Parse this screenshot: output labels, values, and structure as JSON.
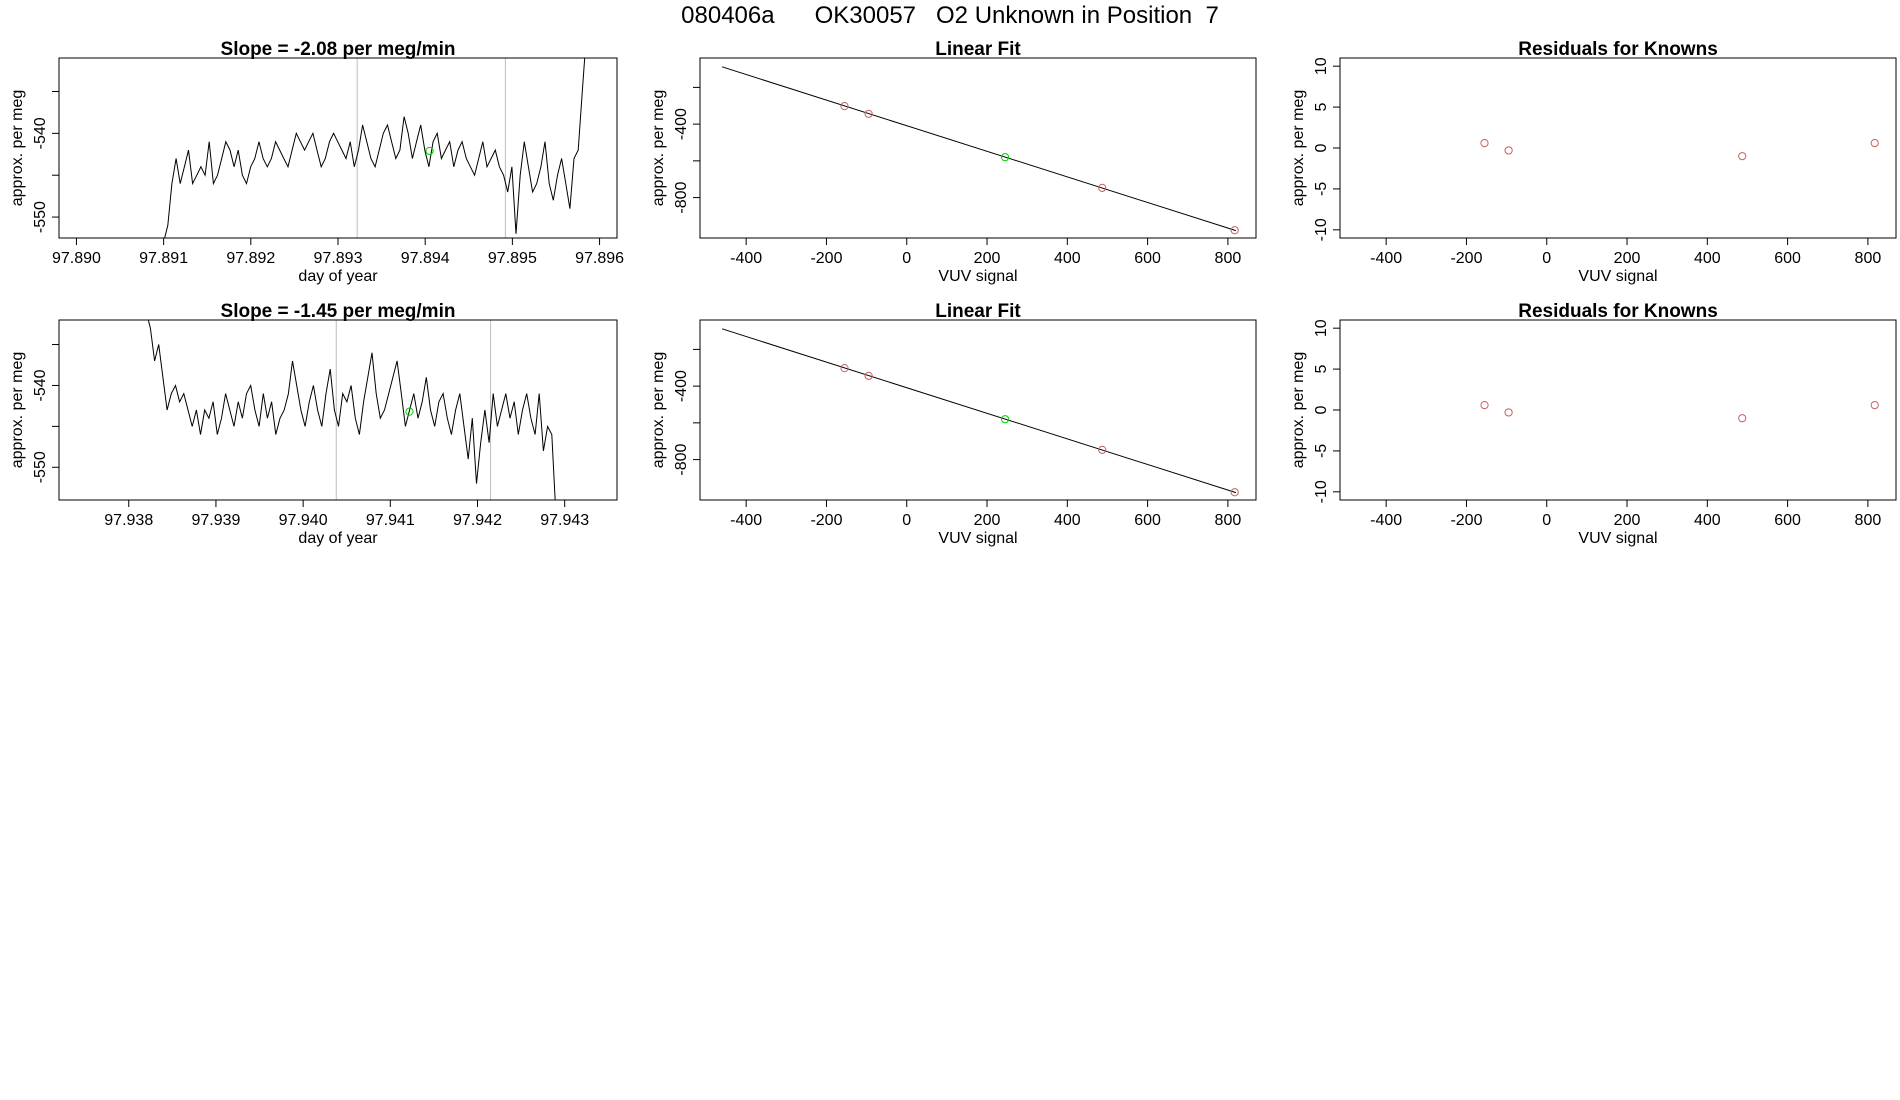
{
  "figure": {
    "title": "080406a      OK30057   O2 Unknown in Position  7",
    "colors": {
      "trace": "#000000",
      "known": "#cd5c5c",
      "unknown": "#00cd00",
      "vline": "#bebebe",
      "axis": "#000000"
    }
  },
  "chart_data": [
    {
      "id": "drift-1",
      "type": "line",
      "title": "Slope =  -2.08  per meg/min",
      "xlabel": "day of year",
      "ylabel": "approx. per meg",
      "xlim": [
        97.8898,
        97.8962
      ],
      "ylim": [
        -552.5,
        -531
      ],
      "xticks": [
        "97.890",
        "97.891",
        "97.892",
        "97.893",
        "97.894",
        "97.895",
        "97.896"
      ],
      "xtick_values": [
        97.89,
        97.891,
        97.892,
        97.893,
        97.894,
        97.895,
        97.896
      ],
      "yticks": [
        "-550",
        "",
        "-540",
        ""
      ],
      "ytick_values": [
        -550,
        -545,
        -540,
        -535
      ],
      "vlines": [
        97.89322,
        97.89492
      ],
      "trace": {
        "x_start": 97.891,
        "x_end": 97.89585,
        "y": [
          -553,
          -551,
          -546,
          -543,
          -546,
          -544,
          -542,
          -546,
          -545,
          -544,
          -545,
          -541,
          -546,
          -545,
          -543,
          -541,
          -542,
          -544,
          -542,
          -545,
          -546,
          -544,
          -543,
          -541,
          -543,
          -544,
          -543,
          -541,
          -542,
          -543,
          -544,
          -542,
          -540,
          -541,
          -542,
          -541,
          -540,
          -542,
          -544,
          -543,
          -541,
          -540,
          -541,
          -542,
          -543,
          -541,
          -544,
          -542,
          -539,
          -541,
          -543,
          -544,
          -542,
          -540,
          -539,
          -541,
          -543,
          -542,
          -538,
          -540,
          -543,
          -541,
          -539,
          -542,
          -544,
          -541,
          -540,
          -543,
          -542,
          -541,
          -544,
          -542,
          -541,
          -543,
          -544,
          -545,
          -543,
          -541,
          -544,
          -543,
          -542,
          -544,
          -545,
          -547,
          -544,
          -552,
          -545,
          -541,
          -544,
          -547,
          -546,
          -544,
          -541,
          -546,
          -548,
          -545,
          -543,
          -546,
          -549,
          -543,
          -542,
          -535,
          -528
        ]
      },
      "unknown_point": {
        "x": 97.89405,
        "y": -542.1
      }
    },
    {
      "id": "fit-1",
      "type": "scatter",
      "title": "Linear Fit",
      "xlabel": "VUV signal",
      "ylabel": "approx. per meg",
      "xlim": [
        -515,
        870
      ],
      "ylim": [
        -1020,
        -40
      ],
      "xticks": [
        "-400",
        "-200",
        "0",
        "200",
        "400",
        "600",
        "800"
      ],
      "xtick_values": [
        -400,
        -200,
        0,
        200,
        400,
        600,
        800
      ],
      "yticks": [
        "",
        "-400",
        "",
        "-800"
      ],
      "ytick_values": [
        -200,
        -400,
        -600,
        -800
      ],
      "fit_line": {
        "x": [
          -460,
          820
        ],
        "y": [
          -88,
          -980
        ]
      },
      "known_points": [
        {
          "x": -155,
          "y": -302
        },
        {
          "x": -95,
          "y": -344
        },
        {
          "x": 487,
          "y": -747
        },
        {
          "x": 817,
          "y": -978
        }
      ],
      "unknown_point": {
        "x": 245,
        "y": -580
      }
    },
    {
      "id": "resid-1",
      "type": "scatter",
      "title": "Residuals for Knowns",
      "xlabel": "VUV signal",
      "ylabel": "approx. per meg",
      "xlim": [
        -515,
        870
      ],
      "ylim": [
        -11,
        11
      ],
      "xticks": [
        "-400",
        "-200",
        "0",
        "200",
        "400",
        "600",
        "800"
      ],
      "xtick_values": [
        -400,
        -200,
        0,
        200,
        400,
        600,
        800
      ],
      "yticks": [
        "-10",
        "-5",
        "0",
        "5",
        "10"
      ],
      "ytick_values": [
        -10,
        -5,
        0,
        5,
        10
      ],
      "known_points": [
        {
          "x": -155,
          "y": 0.6
        },
        {
          "x": -95,
          "y": -0.3
        },
        {
          "x": 487,
          "y": -1.0
        },
        {
          "x": 817,
          "y": 0.6
        }
      ]
    },
    {
      "id": "drift-2",
      "type": "line",
      "title": "Slope =  -1.45  per meg/min",
      "xlabel": "day of year",
      "ylabel": "approx. per meg",
      "xlim": [
        97.9372,
        97.9436
      ],
      "ylim": [
        -554,
        -532
      ],
      "xticks": [
        "97.938",
        "97.939",
        "97.940",
        "97.941",
        "97.942",
        "97.943"
      ],
      "xtick_values": [
        97.938,
        97.939,
        97.94,
        97.941,
        97.942,
        97.943
      ],
      "yticks": [
        "-550",
        "",
        "-540",
        ""
      ],
      "ytick_values": [
        -550,
        -545,
        -540,
        -535
      ],
      "vlines": [
        97.94038,
        97.94215
      ],
      "trace": {
        "x_start": 97.9382,
        "x_end": 97.9429,
        "y": [
          -531,
          -533,
          -537,
          -535,
          -539,
          -543,
          -541,
          -540,
          -542,
          -541,
          -543,
          -545,
          -543,
          -546,
          -543,
          -544,
          -542,
          -546,
          -544,
          -541,
          -543,
          -545,
          -542,
          -544,
          -541,
          -540,
          -543,
          -545,
          -541,
          -544,
          -542,
          -546,
          -544,
          -543,
          -541,
          -537,
          -540,
          -543,
          -545,
          -542,
          -540,
          -543,
          -545,
          -541,
          -538,
          -543,
          -545,
          -541,
          -542,
          -540,
          -544,
          -546,
          -542,
          -539,
          -536,
          -541,
          -544,
          -543,
          -541,
          -539,
          -537,
          -541,
          -545,
          -543,
          -541,
          -544,
          -542,
          -539,
          -543,
          -545,
          -542,
          -541,
          -544,
          -546,
          -543,
          -541,
          -545,
          -549,
          -544,
          -552,
          -547,
          -543,
          -547,
          -541,
          -545,
          -543,
          -541,
          -544,
          -542,
          -546,
          -543,
          -541,
          -544,
          -546,
          -541,
          -548,
          -545,
          -546,
          -556
        ]
      },
      "unknown_point": {
        "x": 97.94122,
        "y": -543.2
      }
    },
    {
      "id": "fit-2",
      "type": "scatter",
      "title": "Linear Fit",
      "xlabel": "VUV signal",
      "ylabel": "approx. per meg",
      "xlim": [
        -515,
        870
      ],
      "ylim": [
        -1020,
        -40
      ],
      "xticks": [
        "-400",
        "-200",
        "0",
        "200",
        "400",
        "600",
        "800"
      ],
      "xtick_values": [
        -400,
        -200,
        0,
        200,
        400,
        600,
        800
      ],
      "yticks": [
        "",
        "-400",
        "",
        "-800"
      ],
      "ytick_values": [
        -200,
        -400,
        -600,
        -800
      ],
      "fit_line": {
        "x": [
          -460,
          820
        ],
        "y": [
          -88,
          -980
        ]
      },
      "known_points": [
        {
          "x": -155,
          "y": -302
        },
        {
          "x": -95,
          "y": -344
        },
        {
          "x": 487,
          "y": -747
        },
        {
          "x": 817,
          "y": -978
        }
      ],
      "unknown_point": {
        "x": 245,
        "y": -580
      }
    },
    {
      "id": "resid-2",
      "type": "scatter",
      "title": "Residuals for Knowns",
      "xlabel": "VUV signal",
      "ylabel": "approx. per meg",
      "xlim": [
        -515,
        870
      ],
      "ylim": [
        -11,
        11
      ],
      "xticks": [
        "-400",
        "-200",
        "0",
        "200",
        "400",
        "600",
        "800"
      ],
      "xtick_values": [
        -400,
        -200,
        0,
        200,
        400,
        600,
        800
      ],
      "yticks": [
        "-10",
        "-5",
        "0",
        "5",
        "10"
      ],
      "ytick_values": [
        -10,
        -5,
        0,
        5,
        10
      ],
      "known_points": [
        {
          "x": -155,
          "y": 0.6
        },
        {
          "x": -95,
          "y": -0.3
        },
        {
          "x": 487,
          "y": -1.0
        },
        {
          "x": 817,
          "y": 0.6
        }
      ]
    }
  ]
}
